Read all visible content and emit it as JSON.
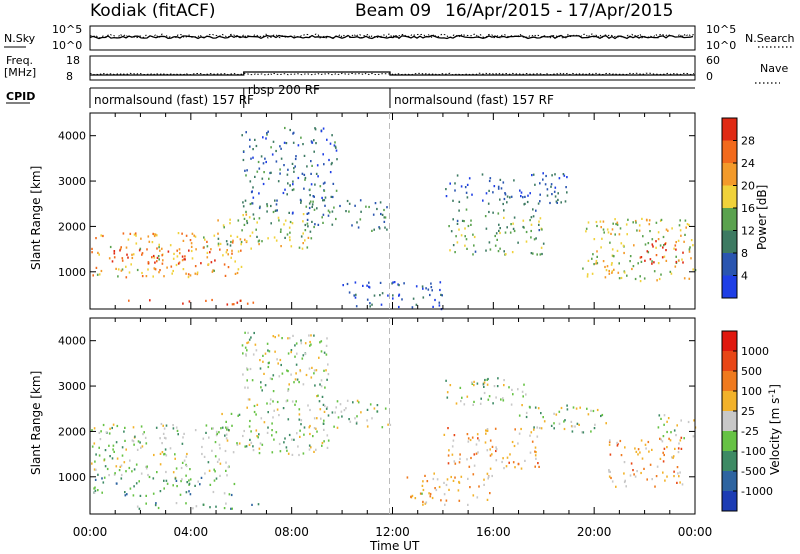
{
  "header": {
    "station": "Kodiak (fitACF)",
    "beam": "Beam 09",
    "date_range": "16/Apr/2015 - 17/Apr/2015"
  },
  "top_panels": {
    "nsky_label": "N.Sky",
    "nsearch_label": "N.Search",
    "nsky_ticks": [
      "10^5",
      "10^0"
    ],
    "nsearch_ticks": [
      "10^5",
      "10^0"
    ],
    "freq_label": "Freq.",
    "freq_unit": "[MHz]",
    "freq_ticks": [
      "18",
      "8"
    ],
    "nave_label": "Nave",
    "nave_ticks": [
      "60",
      "0"
    ],
    "cpid_label": "CPID"
  },
  "cpid_segments": [
    {
      "label": "normalsound (fast) 157 RF",
      "start_hour": 0,
      "end_hour": 6.1
    },
    {
      "label": "rbsp 200 RF",
      "start_hour": 6.1,
      "end_hour": 11.9
    },
    {
      "label": "normalsound (fast) 157 RF",
      "start_hour": 11.9,
      "end_hour": 24
    }
  ],
  "colors": {
    "power": [
      "#1f3fe6",
      "#2a55b0",
      "#3d7a62",
      "#5aa24e",
      "#f0d23a",
      "#f39a2a",
      "#f26a1c",
      "#e02a14"
    ],
    "velocity": [
      "#1c3cb4",
      "#2e64a0",
      "#3d8a64",
      "#66c244",
      "#c8c8c8",
      "#f2b22a",
      "#ef7a1e",
      "#e84616",
      "#e0180e"
    ]
  },
  "chart_data": [
    {
      "type": "heatmap",
      "panel": "power",
      "xlabel": "",
      "ylabel": "Slant Range [km]",
      "x_range_hours": [
        0,
        24
      ],
      "ylim": [
        180,
        4500
      ],
      "yticks": [
        "4000",
        "3000",
        "2000",
        "1000"
      ],
      "colorbar_label": "Power [dB]",
      "colorbar_ticks": [
        "28",
        "24",
        "20",
        "16",
        "12",
        "8",
        "4"
      ],
      "regions": [
        {
          "t0": 0.0,
          "t1": 6.2,
          "r0": 900,
          "r1": 1900,
          "level": 0.65
        },
        {
          "t0": 0.8,
          "t1": 5.0,
          "r0": 1200,
          "r1": 1500,
          "level": 0.95
        },
        {
          "t0": 1.5,
          "t1": 6.5,
          "r0": 300,
          "r1": 420,
          "level": 0.9
        },
        {
          "t0": 5.0,
          "t1": 8.8,
          "r0": 1500,
          "r1": 2300,
          "level": 0.5
        },
        {
          "t0": 6.0,
          "t1": 9.8,
          "r0": 2300,
          "r1": 4200,
          "level": 0.25
        },
        {
          "t0": 8.5,
          "t1": 11.8,
          "r0": 1900,
          "r1": 2600,
          "level": 0.3
        },
        {
          "t0": 10.0,
          "t1": 14.0,
          "r0": 200,
          "r1": 800,
          "level": 0.15
        },
        {
          "t0": 14.0,
          "t1": 19.0,
          "r0": 2500,
          "r1": 3200,
          "level": 0.2
        },
        {
          "t0": 14.2,
          "t1": 18.0,
          "r0": 1400,
          "r1": 2400,
          "level": 0.4
        },
        {
          "t0": 19.5,
          "t1": 24.0,
          "r0": 800,
          "r1": 2200,
          "level": 0.55
        },
        {
          "t0": 21.8,
          "t1": 23.5,
          "r0": 1200,
          "r1": 1700,
          "level": 0.95
        }
      ]
    },
    {
      "type": "heatmap",
      "panel": "velocity",
      "xlabel": "Time UT",
      "ylabel": "Slant Range [km]",
      "x_range_hours": [
        0,
        24
      ],
      "xticks": [
        "00:00",
        "04:00",
        "08:00",
        "12:00",
        "16:00",
        "20:00",
        "00:00"
      ],
      "ylim": [
        180,
        4500
      ],
      "yticks": [
        "4000",
        "3000",
        "2000",
        "1000"
      ],
      "colorbar_label": "Velocity [m s^-1]",
      "colorbar_ticks": [
        "1000",
        "500",
        "100",
        "25",
        "-25",
        "-100",
        "-500",
        "-1000"
      ],
      "regions": [
        {
          "t0": 0.0,
          "t1": 5.5,
          "r0": 1000,
          "r1": 2200,
          "level": 0.45
        },
        {
          "t0": 0.0,
          "t1": 6.0,
          "r0": 600,
          "r1": 1000,
          "level": 0.3
        },
        {
          "t0": 1.5,
          "t1": 7.0,
          "r0": 300,
          "r1": 450,
          "level": 0.35
        },
        {
          "t0": 5.0,
          "t1": 9.5,
          "r0": 1500,
          "r1": 2500,
          "level": 0.45
        },
        {
          "t0": 6.0,
          "t1": 9.5,
          "r0": 2500,
          "r1": 4200,
          "level": 0.45
        },
        {
          "t0": 9.0,
          "t1": 12.0,
          "r0": 2100,
          "r1": 2700,
          "level": 0.45
        },
        {
          "t0": 14.0,
          "t1": 17.5,
          "r0": 2600,
          "r1": 3200,
          "level": 0.45
        },
        {
          "t0": 17.0,
          "t1": 20.5,
          "r0": 2000,
          "r1": 2600,
          "level": 0.45
        },
        {
          "t0": 14.0,
          "t1": 17.8,
          "r0": 1200,
          "r1": 2100,
          "level": 0.65
        },
        {
          "t0": 12.5,
          "t1": 16.0,
          "r0": 400,
          "r1": 1100,
          "level": 0.6
        },
        {
          "t0": 20.5,
          "t1": 23.5,
          "r0": 800,
          "r1": 1900,
          "level": 0.65
        },
        {
          "t0": 22.5,
          "t1": 24.0,
          "r0": 1800,
          "r1": 2400,
          "level": 0.45
        }
      ]
    }
  ]
}
